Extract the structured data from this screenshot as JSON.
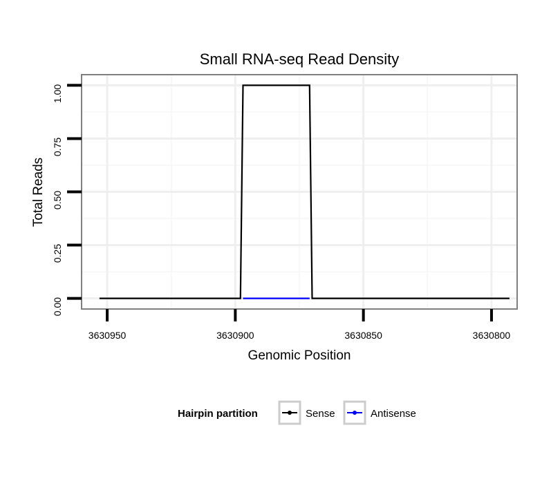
{
  "chart_data": {
    "type": "line",
    "title": "Small RNA-seq Read Density",
    "xlabel": "Genomic Position",
    "ylabel": "Total Reads",
    "x_reversed": true,
    "xlim": [
      3630960,
      3630790
    ],
    "ylim": [
      -0.05,
      1.05
    ],
    "x_ticks": [
      3630950,
      3630900,
      3630850,
      3630800
    ],
    "x_tick_labels": [
      "3630950",
      "3630900",
      "3630850",
      "3630800"
    ],
    "y_ticks": [
      0,
      0.25,
      0.5,
      0.75,
      1.0
    ],
    "y_tick_labels": [
      "0.00",
      "0.25",
      "0.50",
      "0.75",
      "1.00"
    ],
    "grid": true,
    "legend": {
      "title": "Hairpin partition",
      "position": "bottom",
      "entries": [
        {
          "name": "Sense",
          "color": "#000000"
        },
        {
          "name": "Antisense",
          "color": "#0000ff"
        }
      ]
    },
    "series": [
      {
        "name": "Sense",
        "color": "#000000",
        "x": [
          3630953,
          3630898,
          3630897,
          3630871,
          3630870,
          3630793
        ],
        "y": [
          0,
          0,
          1,
          1,
          0,
          0
        ]
      },
      {
        "name": "Antisense",
        "color": "#0000ff",
        "x": [
          3630897,
          3630871
        ],
        "y": [
          0,
          0
        ]
      }
    ]
  }
}
